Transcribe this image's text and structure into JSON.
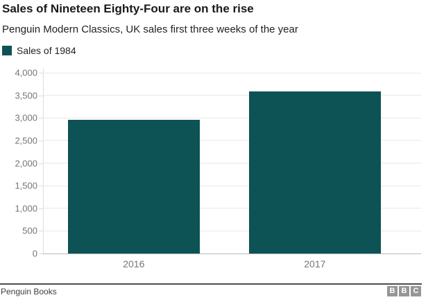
{
  "header": {
    "title": "Sales of Nineteen Eighty-Four are on the rise",
    "subtitle": "Penguin Modern Classics, UK sales first three weeks of the year"
  },
  "chart_data": {
    "type": "bar",
    "title": "Sales of Nineteen Eighty-Four are on the rise",
    "subtitle": "Penguin Modern Classics, UK sales first three weeks of the year",
    "legend": [
      {
        "label": "Sales of 1984",
        "color": "#0d5355"
      }
    ],
    "legend_position": "top-left",
    "categories": [
      "2016",
      "2017"
    ],
    "values": [
      2960,
      3590
    ],
    "bar_color": "#0d5355",
    "ylim": [
      0,
      4000
    ],
    "y_ticks": [
      {
        "value": 0,
        "label": "0"
      },
      {
        "value": 500,
        "label": "500"
      },
      {
        "value": 1000,
        "label": "1,000"
      },
      {
        "value": 1500,
        "label": "1,500"
      },
      {
        "value": 2000,
        "label": "2,000"
      },
      {
        "value": 2500,
        "label": "2,500"
      },
      {
        "value": 3000,
        "label": "3,000"
      },
      {
        "value": 3500,
        "label": "3,500"
      },
      {
        "value": 4000,
        "label": "4,000"
      }
    ],
    "grid": "horizontal",
    "xlabel": "",
    "ylabel": ""
  },
  "footer": {
    "source": "Penguin Books",
    "logo": {
      "letters": [
        "B",
        "B",
        "C"
      ]
    }
  },
  "colors": {
    "bar": "#0d5355",
    "gridline": "#e8e8e8",
    "baseline": "#b8b8b8",
    "axis": "#dcdcdc",
    "tick_label": "#757575",
    "divider": "#4d4d4d",
    "logo_bg": "#969696",
    "title": "#1a1a1a",
    "text": "#222222",
    "source_text": "#3d3d3d"
  }
}
